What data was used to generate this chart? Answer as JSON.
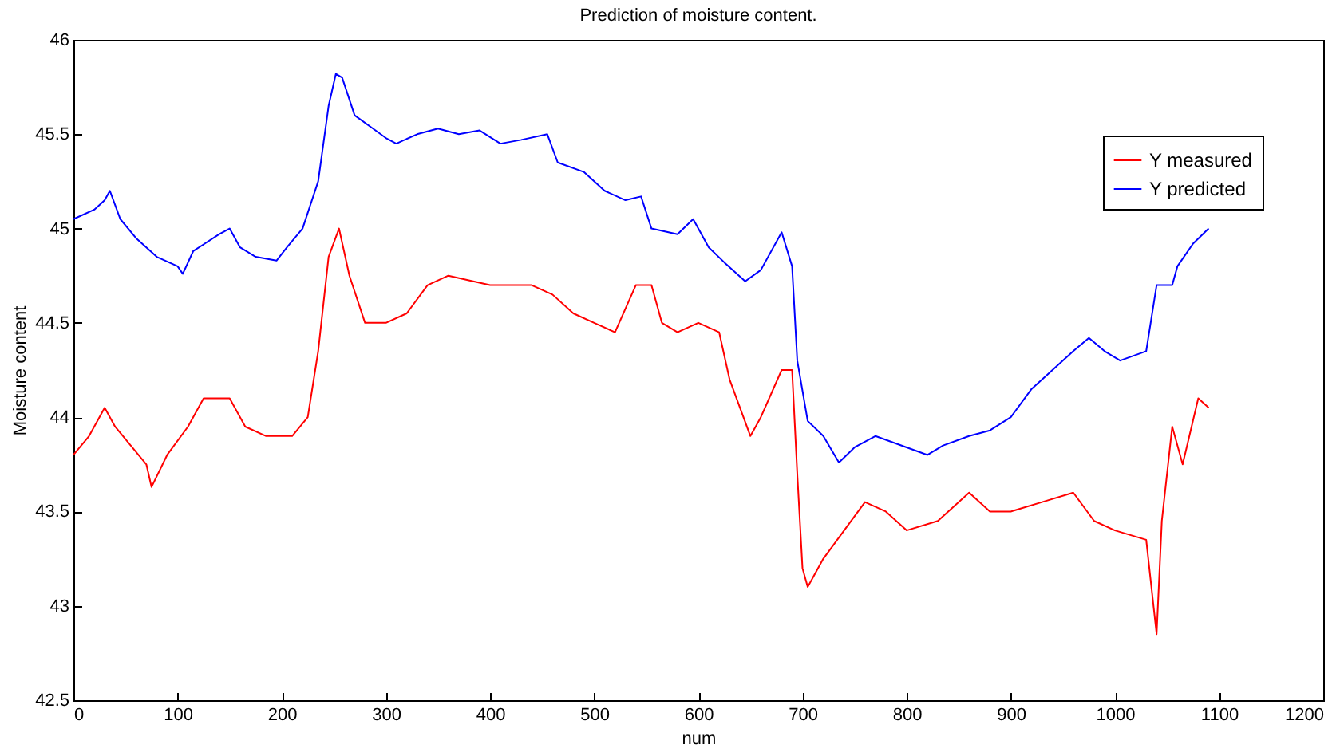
{
  "chart_data": {
    "type": "line",
    "title": "Prediction of moisture content.",
    "xlabel": "num",
    "ylabel": "Moisture content",
    "xlim": [
      0,
      1200
    ],
    "xticks": [
      0,
      100,
      200,
      300,
      400,
      500,
      600,
      700,
      800,
      900,
      1000,
      1100,
      1200
    ],
    "ylim": [
      42.5,
      46
    ],
    "yticks": [
      42.5,
      43,
      43.5,
      44,
      44.5,
      45,
      45.5,
      46
    ],
    "grid": false,
    "legend": "top right",
    "marker": "none",
    "line_style": "solid",
    "series": [
      {
        "name": "Y measured",
        "color": "#ff0000",
        "x": [
          0,
          15,
          30,
          40,
          55,
          70,
          75,
          90,
          110,
          125,
          150,
          165,
          185,
          210,
          225,
          235,
          245,
          255,
          265,
          280,
          300,
          320,
          340,
          360,
          400,
          440,
          460,
          480,
          500,
          520,
          540,
          555,
          565,
          580,
          600,
          620,
          630,
          640,
          650,
          660,
          680,
          690,
          695,
          700,
          705,
          720,
          740,
          760,
          780,
          800,
          830,
          860,
          880,
          900,
          930,
          960,
          980,
          1000,
          1030,
          1040,
          1045,
          1055,
          1065,
          1080,
          1090
        ],
        "values": [
          43.8,
          43.9,
          44.05,
          43.95,
          43.85,
          43.75,
          43.63,
          43.8,
          43.95,
          44.1,
          44.1,
          43.95,
          43.9,
          43.9,
          44.0,
          44.35,
          44.85,
          45.0,
          44.75,
          44.5,
          44.5,
          44.55,
          44.7,
          44.75,
          44.7,
          44.7,
          44.65,
          44.55,
          44.5,
          44.45,
          44.7,
          44.7,
          44.5,
          44.45,
          44.5,
          44.45,
          44.2,
          44.05,
          43.9,
          44.0,
          44.25,
          44.25,
          43.7,
          43.2,
          43.1,
          43.25,
          43.4,
          43.55,
          43.5,
          43.4,
          43.45,
          43.6,
          43.5,
          43.5,
          43.55,
          43.6,
          43.45,
          43.4,
          43.35,
          42.85,
          43.45,
          43.95,
          43.75,
          44.1,
          44.05
        ]
      },
      {
        "name": "Y predicted",
        "color": "#0000ff",
        "x": [
          0,
          20,
          30,
          35,
          45,
          60,
          80,
          100,
          105,
          115,
          140,
          150,
          160,
          175,
          195,
          205,
          220,
          235,
          245,
          252,
          258,
          270,
          290,
          300,
          310,
          330,
          350,
          370,
          390,
          410,
          430,
          455,
          465,
          490,
          510,
          530,
          545,
          555,
          580,
          595,
          610,
          625,
          645,
          660,
          680,
          690,
          695,
          705,
          720,
          735,
          750,
          770,
          790,
          820,
          835,
          860,
          880,
          900,
          920,
          940,
          960,
          975,
          990,
          1005,
          1030,
          1040,
          1055,
          1060,
          1075,
          1090
        ],
        "values": [
          45.05,
          45.1,
          45.15,
          45.2,
          45.05,
          44.95,
          44.85,
          44.8,
          44.76,
          44.88,
          44.97,
          45.0,
          44.9,
          44.85,
          44.83,
          44.9,
          45.0,
          45.25,
          45.65,
          45.82,
          45.8,
          45.6,
          45.52,
          45.48,
          45.45,
          45.5,
          45.53,
          45.5,
          45.52,
          45.45,
          45.47,
          45.5,
          45.35,
          45.3,
          45.2,
          45.15,
          45.17,
          45.0,
          44.97,
          45.05,
          44.9,
          44.82,
          44.72,
          44.78,
          44.98,
          44.8,
          44.3,
          43.98,
          43.9,
          43.76,
          43.84,
          43.9,
          43.86,
          43.8,
          43.85,
          43.9,
          43.93,
          44.0,
          44.15,
          44.25,
          44.35,
          44.42,
          44.35,
          44.3,
          44.35,
          44.7,
          44.7,
          44.8,
          44.92,
          45.0
        ]
      }
    ]
  }
}
